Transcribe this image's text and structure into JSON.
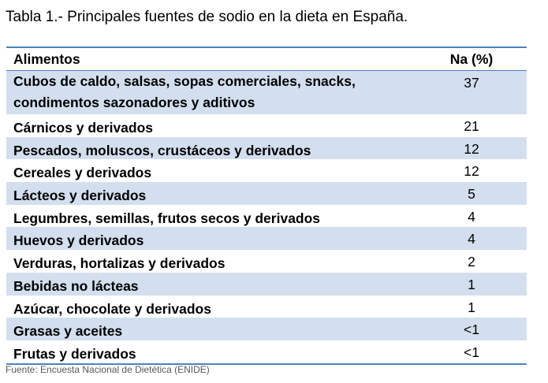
{
  "caption": "Tabla 1.- Principales fuentes de sodio en la dieta en España.",
  "table": {
    "headers": {
      "food": "Alimentos",
      "na": "Na (%)"
    },
    "rows": [
      {
        "food": "Cubos de caldo, salsas, sopas comerciales, snacks, condimentos sazonadores y aditivos",
        "food_line1": "Cubos de caldo, salsas, sopas comerciales, snacks,",
        "food_line2": "condimentos sazonadores y aditivos",
        "na": "37"
      },
      {
        "food": "Cárnicos y derivados",
        "na": "21"
      },
      {
        "food": "Pescados, moluscos, crustáceos y derivados",
        "na": "12"
      },
      {
        "food": "Cereales y derivados",
        "na": "12"
      },
      {
        "food": "Lácteos y derivados",
        "na": "5"
      },
      {
        "food": "Legumbres, semillas, frutos secos y derivados",
        "na": "4"
      },
      {
        "food": "Huevos y derivados",
        "na": "4"
      },
      {
        "food": "Verduras, hortalizas y derivados",
        "na": "2"
      },
      {
        "food": "Bebidas no lácteas",
        "na": "1"
      },
      {
        "food": "Azúcar, chocolate y derivados",
        "na": "1"
      },
      {
        "food": "Grasas y aceites",
        "na": "<1"
      },
      {
        "food": "Frutas y derivados",
        "na": "<1"
      }
    ]
  },
  "source": "Fuente: Encuesta Nacional de Dietética (ENIDE)",
  "colors": {
    "rule": "#4f81bd",
    "band": "#d3dfee"
  }
}
